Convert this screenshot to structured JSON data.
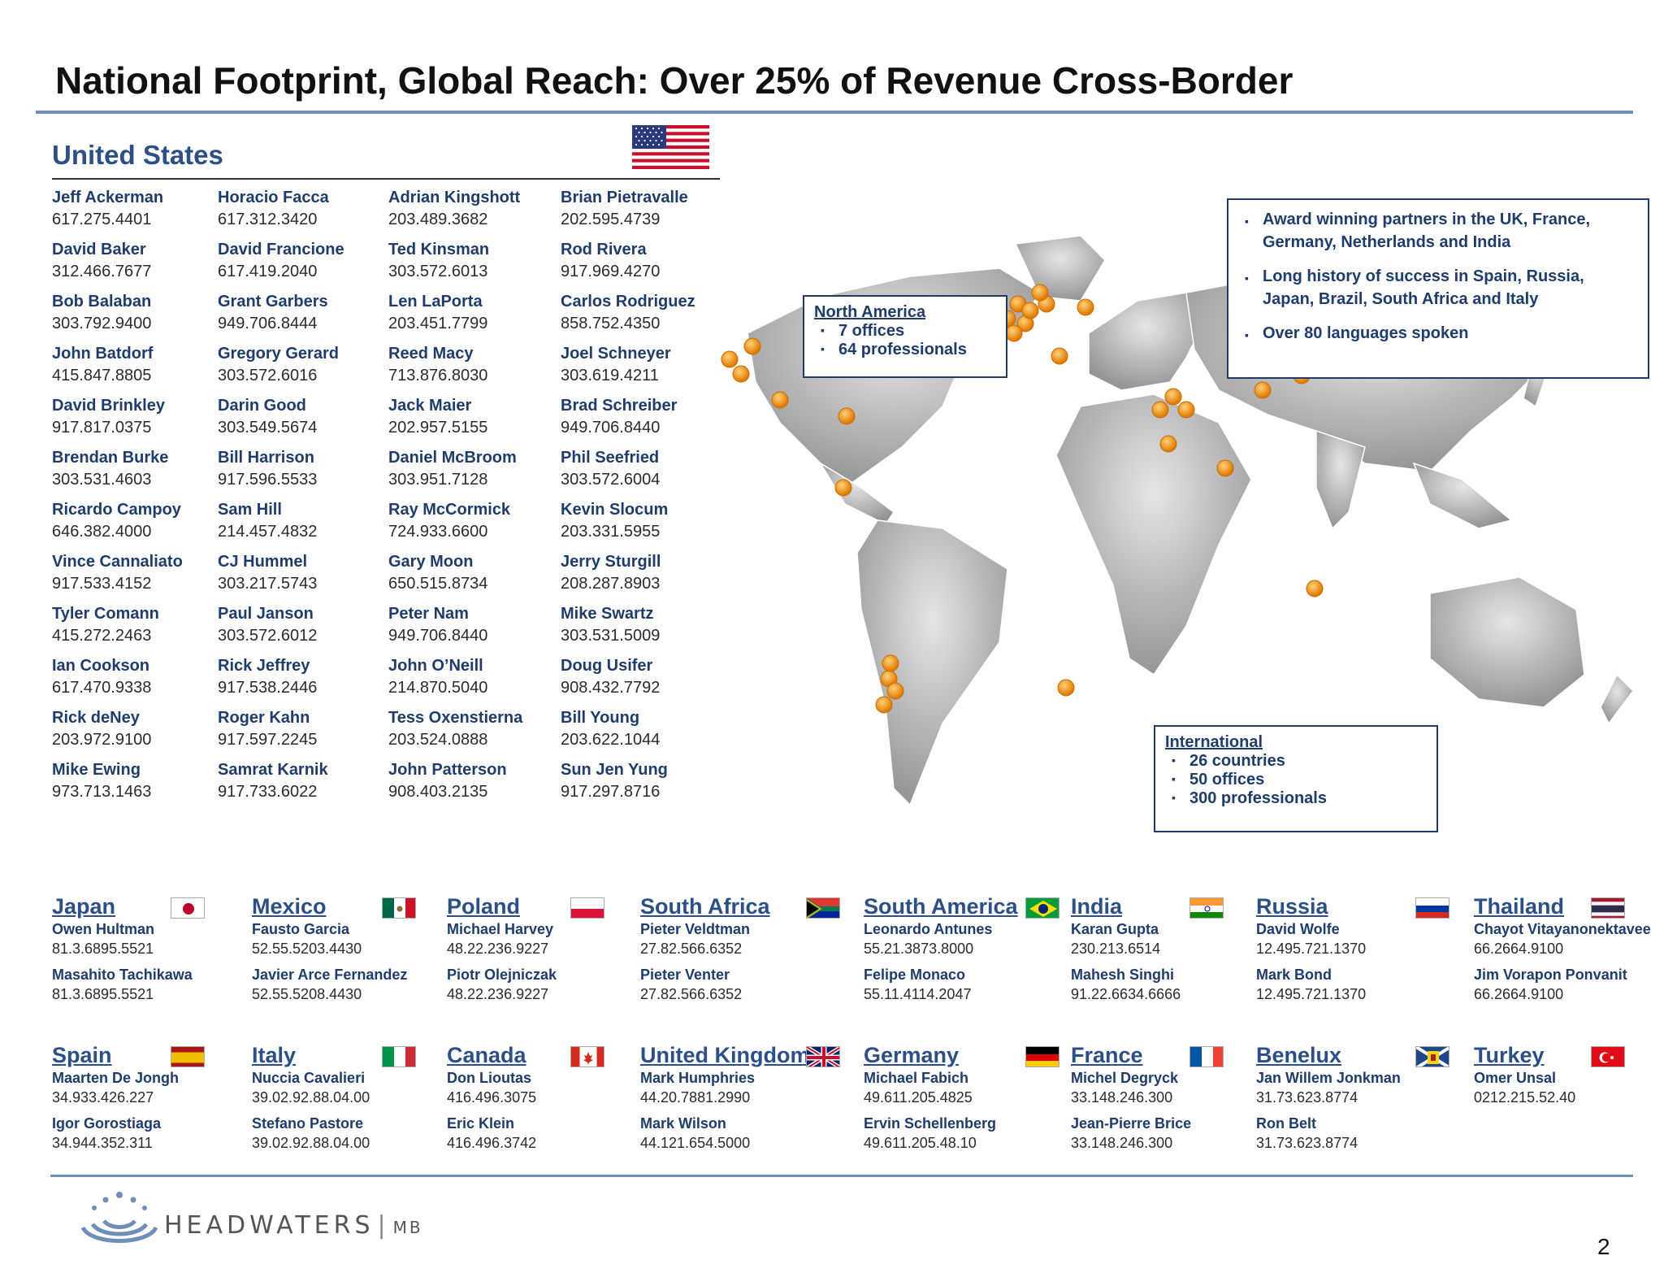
{
  "title": "National Footprint, Global Reach: Over 25% of Revenue Cross-Border",
  "us": {
    "heading": "United States",
    "columns": [
      [
        {
          "name": "Jeff Ackerman",
          "phone": "617.275.4401"
        },
        {
          "name": "David Baker",
          "phone": "312.466.7677"
        },
        {
          "name": "Bob Balaban",
          "phone": "303.792.9400"
        },
        {
          "name": "John Batdorf",
          "phone": "415.847.8805"
        },
        {
          "name": "David Brinkley",
          "phone": "917.817.0375"
        },
        {
          "name": "Brendan Burke",
          "phone": "303.531.4603"
        },
        {
          "name": "Ricardo Campoy",
          "phone": "646.382.4000"
        },
        {
          "name": "Vince Cannaliato",
          "phone": "917.533.4152"
        },
        {
          "name": "Tyler Comann",
          "phone": "415.272.2463"
        },
        {
          "name": "Ian Cookson",
          "phone": "617.470.9338"
        },
        {
          "name": "Rick deNey",
          "phone": "203.972.9100"
        },
        {
          "name": "Mike Ewing",
          "phone": "973.713.1463"
        }
      ],
      [
        {
          "name": "Horacio Facca",
          "phone": "617.312.3420"
        },
        {
          "name": "David Francione",
          "phone": "617.419.2040"
        },
        {
          "name": "Grant Garbers",
          "phone": "949.706.8444"
        },
        {
          "name": "Gregory Gerard",
          "phone": "303.572.6016"
        },
        {
          "name": "Darin Good",
          "phone": "303.549.5674"
        },
        {
          "name": "Bill Harrison",
          "phone": "917.596.5533"
        },
        {
          "name": "Sam Hill",
          "phone": "214.457.4832"
        },
        {
          "name": "CJ Hummel",
          "phone": "303.217.5743"
        },
        {
          "name": "Paul Janson",
          "phone": "303.572.6012"
        },
        {
          "name": "Rick Jeffrey",
          "phone": "917.538.2446"
        },
        {
          "name": "Roger Kahn",
          "phone": "917.597.2245"
        },
        {
          "name": "Samrat Karnik",
          "phone": "917.733.6022"
        }
      ],
      [
        {
          "name": "Adrian Kingshott",
          "phone": "203.489.3682"
        },
        {
          "name": "Ted Kinsman",
          "phone": "303.572.6013"
        },
        {
          "name": "Len LaPorta",
          "phone": "203.451.7799"
        },
        {
          "name": "Reed Macy",
          "phone": "713.876.8030"
        },
        {
          "name": "Jack Maier",
          "phone": "202.957.5155"
        },
        {
          "name": "Daniel McBroom",
          "phone": "303.951.7128"
        },
        {
          "name": "Ray McCormick",
          "phone": "724.933.6600"
        },
        {
          "name": "Gary Moon",
          "phone": "650.515.8734"
        },
        {
          "name": "Peter Nam",
          "phone": "949.706.8440"
        },
        {
          "name": "John O’Neill",
          "phone": "214.870.5040"
        },
        {
          "name": "Tess Oxenstierna",
          "phone": "203.524.0888"
        },
        {
          "name": "John Patterson",
          "phone": "908.403.2135"
        }
      ],
      [
        {
          "name": "Brian Pietravalle",
          "phone": "202.595.4739"
        },
        {
          "name": "Rod Rivera",
          "phone": "917.969.4270"
        },
        {
          "name": "Carlos Rodriguez",
          "phone": "858.752.4350"
        },
        {
          "name": "Joel Schneyer",
          "phone": "303.619.4211"
        },
        {
          "name": "Brad Schreiber",
          "phone": "949.706.8440"
        },
        {
          "name": "Phil Seefried",
          "phone": "303.572.6004"
        },
        {
          "name": "Kevin Slocum",
          "phone": "203.331.5955"
        },
        {
          "name": "Jerry Sturgill",
          "phone": "208.287.8903"
        },
        {
          "name": "Mike Swartz",
          "phone": "303.531.5009"
        },
        {
          "name": "Doug Usifer",
          "phone": "908.432.7792"
        },
        {
          "name": "Bill Young",
          "phone": "203.622.1044"
        },
        {
          "name": "Sun Jen Yung",
          "phone": "917.297.8716"
        }
      ]
    ]
  },
  "north_america": {
    "heading": "North America",
    "items": [
      "7 offices",
      "64 professionals"
    ]
  },
  "international": {
    "heading": "International",
    "items": [
      "26 countries",
      "50 offices",
      "300 professionals"
    ]
  },
  "highlights": [
    "Award winning partners in the UK, France, Germany, Netherlands and India",
    "Long history of success in Spain, Russia, Japan, Brazil, South Africa and Italy",
    "Over 80 languages spoken"
  ],
  "regions_row1": [
    {
      "name": "Japan",
      "flag": "japan",
      "contacts": [
        {
          "name": "Owen Hultman",
          "phone": "81.3.6895.5521"
        },
        {
          "name": "Masahito Tachikawa",
          "phone": "81.3.6895.5521"
        }
      ]
    },
    {
      "name": "Mexico",
      "flag": "mexico",
      "contacts": [
        {
          "name": "Fausto Garcia",
          "phone": "52.55.5203.4430"
        },
        {
          "name": "Javier Arce Fernandez",
          "phone": "52.55.5208.4430"
        }
      ]
    },
    {
      "name": "Poland",
      "flag": "poland",
      "contacts": [
        {
          "name": "Michael Harvey",
          "phone": "48.22.236.9227"
        },
        {
          "name": "Piotr Olejniczak",
          "phone": "48.22.236.9227"
        }
      ]
    },
    {
      "name": "South Africa",
      "flag": "south-africa",
      "contacts": [
        {
          "name": "Pieter Veldtman",
          "phone": "27.82.566.6352"
        },
        {
          "name": "Pieter Venter",
          "phone": "27.82.566.6352"
        }
      ]
    },
    {
      "name": "South America",
      "flag": "brazil",
      "contacts": [
        {
          "name": "Leonardo Antunes",
          "phone": "55.21.3873.8000"
        },
        {
          "name": "Felipe Monaco",
          "phone": "55.11.4114.2047"
        }
      ]
    },
    {
      "name": "India",
      "flag": "india",
      "contacts": [
        {
          "name": "Karan Gupta",
          "phone": "230.213.6514"
        },
        {
          "name": "Mahesh Singhi",
          "phone": "91.22.6634.6666"
        }
      ]
    },
    {
      "name": "Russia",
      "flag": "russia",
      "contacts": [
        {
          "name": "David Wolfe",
          "phone": "12.495.721.1370"
        },
        {
          "name": "Mark Bond",
          "phone": "12.495.721.1370"
        }
      ]
    },
    {
      "name": "Thailand",
      "flag": "thailand",
      "contacts": [
        {
          "name": "Chayot Vitayanonektavee",
          "phone": "66.2664.9100"
        },
        {
          "name": "Jim Vorapon Ponvanit",
          "phone": "66.2664.9100"
        }
      ]
    }
  ],
  "regions_row2": [
    {
      "name": "Spain",
      "flag": "spain",
      "contacts": [
        {
          "name": "Maarten De Jongh",
          "phone": "34.933.426.227"
        },
        {
          "name": "Igor Gorostiaga",
          "phone": "34.944.352.311"
        }
      ]
    },
    {
      "name": "Italy",
      "flag": "italy",
      "contacts": [
        {
          "name": "Nuccia Cavalieri",
          "phone": "39.02.92.88.04.00"
        },
        {
          "name": "Stefano Pastore",
          "phone": "39.02.92.88.04.00"
        }
      ]
    },
    {
      "name": "Canada",
      "flag": "canada",
      "contacts": [
        {
          "name": "Don Lioutas",
          "phone": "416.496.3075"
        },
        {
          "name": "Eric Klein",
          "phone": "416.496.3742"
        }
      ]
    },
    {
      "name": "United Kingdom",
      "flag": "uk",
      "contacts": [
        {
          "name": "Mark Humphries",
          "phone": "44.20.7881.2990"
        },
        {
          "name": "Mark Wilson",
          "phone": "44.121.654.5000"
        }
      ]
    },
    {
      "name": "Germany",
      "flag": "germany",
      "contacts": [
        {
          "name": "Michael Fabich",
          "phone": "49.611.205.4825"
        },
        {
          "name": "Ervin Schellenberg",
          "phone": "49.611.205.48.10"
        }
      ]
    },
    {
      "name": "France",
      "flag": "france",
      "contacts": [
        {
          "name": "Michel Degryck",
          "phone": "33.148.246.300"
        },
        {
          "name": "Jean-Pierre Brice",
          "phone": "33.148.246.300"
        }
      ]
    },
    {
      "name": "Benelux",
      "flag": "belgium",
      "contacts": [
        {
          "name": "Jan Willem Jonkman",
          "phone": "31.73.623.8774"
        },
        {
          "name": "Ron Belt",
          "phone": "31.73.623.8774"
        }
      ]
    },
    {
      "name": "Turkey",
      "flag": "turkey",
      "contacts": [
        {
          "name": "Omer Unsal",
          "phone": "0212.215.52.40"
        }
      ]
    }
  ],
  "logo_text": "HEADWATERS",
  "logo_suffix": "MB",
  "page_number": "2"
}
